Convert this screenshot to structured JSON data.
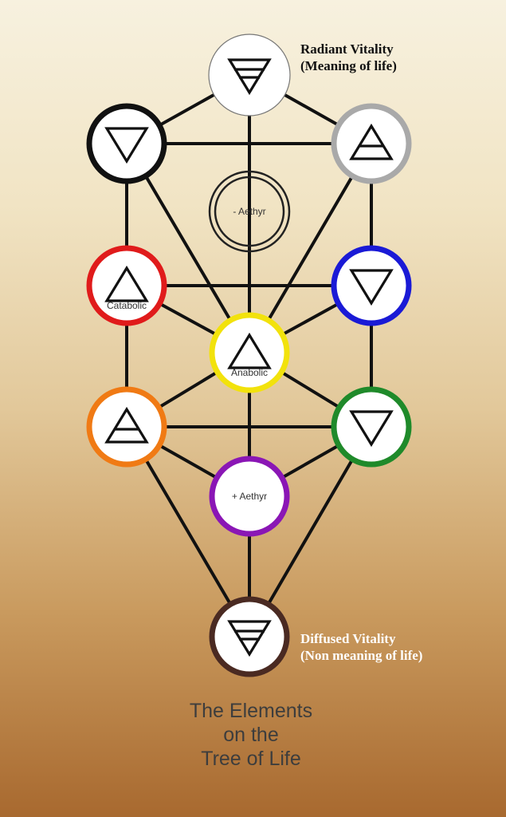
{
  "annotations": {
    "top_line1": "Radiant Vitality",
    "top_line2": "(Meaning of life)",
    "bottom_line1": "Diffused Vitality",
    "bottom_line2": "(Non meaning of life)"
  },
  "title": {
    "line1": "The Elements",
    "line2": "on the",
    "line3": "Tree of Life"
  },
  "nodes": [
    {
      "id": "top",
      "ring_color": "#ffffff",
      "symbol": "down-triangle-double-bar",
      "label": ""
    },
    {
      "id": "upper-left",
      "ring_color": "#111111",
      "symbol": "down-triangle",
      "label": ""
    },
    {
      "id": "upper-right",
      "ring_color": "#a9a9a9",
      "symbol": "up-triangle-bar",
      "label": ""
    },
    {
      "id": "hidden",
      "ring_color": "#222222",
      "symbol": "none",
      "label": "- Aethyr"
    },
    {
      "id": "middle-left",
      "ring_color": "#e01b1b",
      "symbol": "up-triangle",
      "label": "Catabolic"
    },
    {
      "id": "middle-right",
      "ring_color": "#1a1ad6",
      "symbol": "down-triangle",
      "label": ""
    },
    {
      "id": "center",
      "ring_color": "#f2e20c",
      "symbol": "up-triangle",
      "label": "Anabolic"
    },
    {
      "id": "lower-left",
      "ring_color": "#f07a14",
      "symbol": "up-triangle-bar",
      "label": ""
    },
    {
      "id": "lower-right",
      "ring_color": "#1f8a2a",
      "symbol": "down-triangle",
      "label": ""
    },
    {
      "id": "aethyr-plus",
      "ring_color": "#8a16b5",
      "symbol": "none",
      "label": "+ Aethyr"
    },
    {
      "id": "bottom",
      "ring_color": "#4a2a22",
      "symbol": "down-triangle-double-bar",
      "label": ""
    }
  ]
}
